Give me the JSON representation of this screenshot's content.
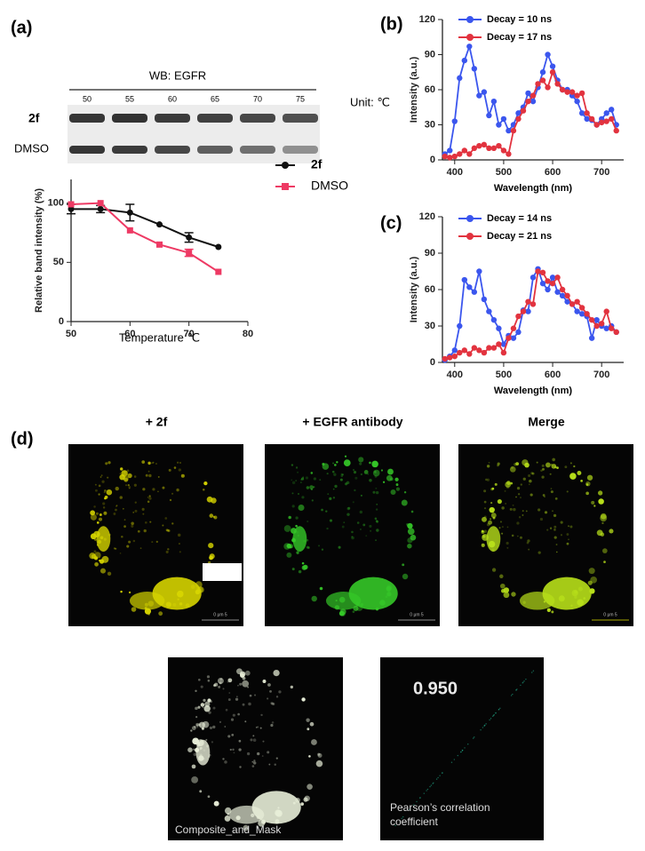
{
  "panel_labels": [
    "(a)",
    "(d)"
  ],
  "western_blot": {
    "title": "WB: EGFR",
    "lanes": [
      50,
      55,
      60,
      65,
      70,
      75
    ],
    "unit": "Unit: ℃",
    "rows": [
      "2f",
      "DMSO"
    ]
  },
  "chart_data": [
    {
      "type": "line",
      "x_label": "Temperature ℃",
      "y_label": "Relative band intensity (%)",
      "legend": "right",
      "x": [
        50,
        55,
        60,
        65,
        70,
        75
      ],
      "xlim": [
        50,
        80
      ],
      "xticks": [
        50,
        60,
        70,
        80
      ],
      "ylim": [
        0,
        120
      ],
      "yticks": [
        0,
        50,
        100
      ],
      "series": [
        {
          "name": "2f",
          "color": "#111111",
          "marker": "circle",
          "values": [
            95,
            95,
            92,
            82,
            71,
            63
          ],
          "errors": [
            4,
            3,
            7,
            null,
            4,
            null
          ]
        },
        {
          "name": "DMSO",
          "color": "#ee3a64",
          "marker": "square",
          "values": [
            99,
            100,
            77,
            65,
            58,
            42
          ],
          "errors": [
            null,
            null,
            null,
            null,
            3,
            null
          ]
        }
      ]
    },
    {
      "type": "line",
      "panel": "(b)",
      "x_label": "Wavelength (nm)",
      "y_label": "Intensity (a.u.)",
      "legend": "upper left",
      "x": [
        380,
        390,
        400,
        410,
        420,
        430,
        440,
        450,
        460,
        470,
        480,
        490,
        500,
        510,
        520,
        530,
        540,
        550,
        560,
        570,
        580,
        590,
        600,
        610,
        620,
        630,
        640,
        650,
        660,
        670,
        680,
        690,
        700,
        710,
        720,
        730
      ],
      "xlim": [
        375,
        745
      ],
      "xticks": [
        400,
        500,
        600,
        700
      ],
      "ylim": [
        0,
        120
      ],
      "yticks": [
        0,
        30,
        60,
        90,
        120
      ],
      "series": [
        {
          "name": "Decay = 10 ns",
          "color": "#3b56ee",
          "marker": "circle",
          "values": [
            5,
            8,
            33,
            70,
            85,
            97,
            78,
            55,
            58,
            38,
            50,
            30,
            35,
            25,
            30,
            40,
            45,
            57,
            50,
            62,
            75,
            90,
            80,
            68,
            60,
            60,
            55,
            50,
            40,
            35,
            34,
            30,
            35,
            40,
            43,
            30
          ]
        },
        {
          "name": "Decay = 17 ns",
          "color": "#e2333f",
          "marker": "circle",
          "values": [
            3,
            2,
            3,
            5,
            8,
            5,
            10,
            12,
            13,
            10,
            10,
            12,
            8,
            5,
            25,
            35,
            42,
            50,
            55,
            65,
            68,
            62,
            75,
            65,
            60,
            58,
            58,
            55,
            57,
            40,
            35,
            30,
            32,
            33,
            35,
            25
          ]
        }
      ]
    },
    {
      "type": "line",
      "panel": "(c)",
      "x_label": "Wavelength (nm)",
      "y_label": "Intensity (a.u.)",
      "legend": "upper left",
      "x": [
        380,
        390,
        400,
        410,
        420,
        430,
        440,
        450,
        460,
        470,
        480,
        490,
        500,
        510,
        520,
        530,
        540,
        550,
        560,
        570,
        580,
        590,
        600,
        610,
        620,
        630,
        640,
        650,
        660,
        670,
        680,
        690,
        700,
        710,
        720,
        730
      ],
      "xlim": [
        375,
        745
      ],
      "xticks": [
        400,
        500,
        600,
        700
      ],
      "ylim": [
        0,
        120
      ],
      "yticks": [
        0,
        30,
        60,
        90,
        120
      ],
      "series": [
        {
          "name": "Decay = 14 ns",
          "color": "#3b56ee",
          "marker": "circle",
          "values": [
            2,
            5,
            10,
            30,
            68,
            62,
            58,
            75,
            52,
            42,
            35,
            28,
            15,
            22,
            20,
            25,
            43,
            42,
            70,
            77,
            65,
            60,
            70,
            58,
            55,
            50,
            48,
            42,
            40,
            38,
            20,
            35,
            30,
            28,
            30,
            25
          ]
        },
        {
          "name": "Decay = 21 ns",
          "color": "#e2333f",
          "marker": "circle",
          "values": [
            3,
            4,
            5,
            8,
            10,
            7,
            12,
            10,
            8,
            12,
            12,
            15,
            8,
            20,
            28,
            38,
            42,
            50,
            48,
            75,
            74,
            67,
            65,
            70,
            60,
            55,
            48,
            50,
            45,
            40,
            35,
            30,
            32,
            42,
            28,
            25
          ]
        }
      ]
    }
  ],
  "microscopy": {
    "panels": [
      {
        "title": "+ 2f",
        "scale_bar": "0 μm 5"
      },
      {
        "title": "+ EGFR antibody",
        "scale_bar": "0 μm 5"
      },
      {
        "title": "Merge",
        "scale_bar": "0 μm 5"
      }
    ],
    "composite": {
      "caption": "Composite_and_Mask"
    },
    "correlation": {
      "value": "0.950",
      "caption_lines": [
        "Pearson’s correlation",
        "coefficient"
      ]
    }
  }
}
